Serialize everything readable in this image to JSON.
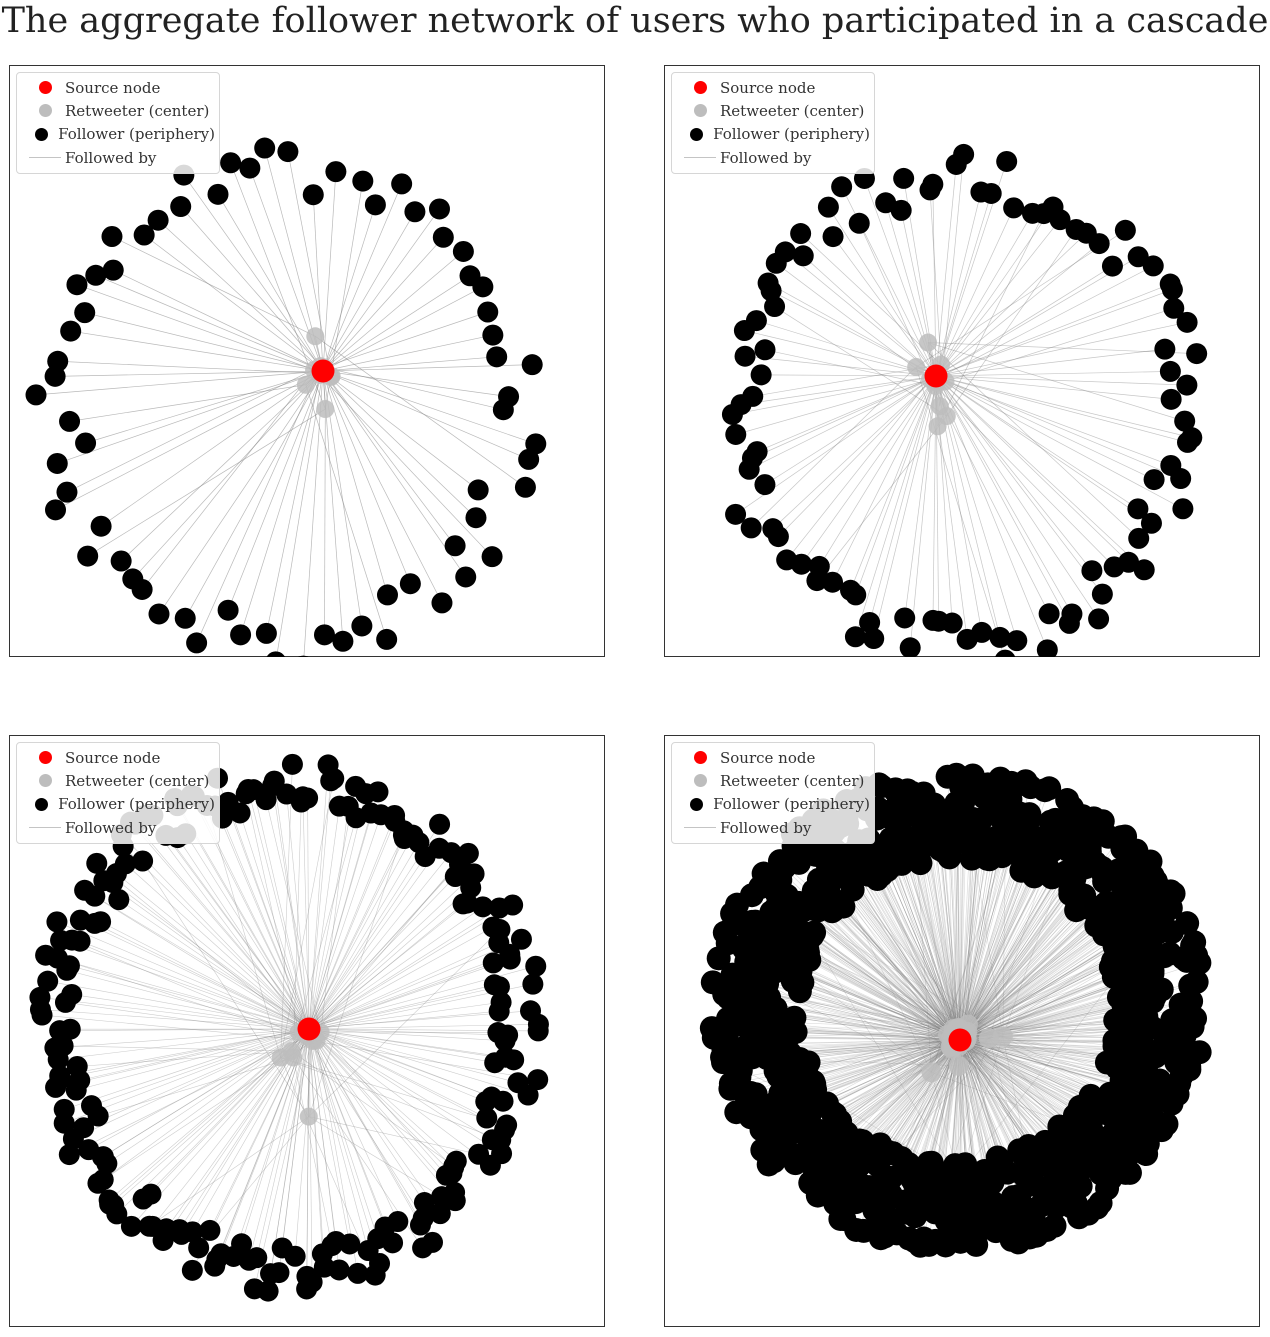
{
  "title": "The aggregate follower network of users who participated in a cascade",
  "legend": {
    "source": "Source node",
    "retweeter": "Retweeter (center)",
    "follower": "Follower (periphery)",
    "edge": "Followed by"
  },
  "colors": {
    "source": "#ff0000",
    "retweeter": "#bdbdbd",
    "follower": "#000000",
    "edge": "#808080"
  },
  "panels": [
    {
      "name": "panel-top-left",
      "followers": 68,
      "retweeters": 10
    },
    {
      "name": "panel-top-right",
      "followers": 100,
      "retweeters": 12
    },
    {
      "name": "panel-bottom-left",
      "followers": 210,
      "retweeters": 14
    },
    {
      "name": "panel-bottom-right",
      "followers": 900,
      "retweeters": 30
    }
  ]
}
